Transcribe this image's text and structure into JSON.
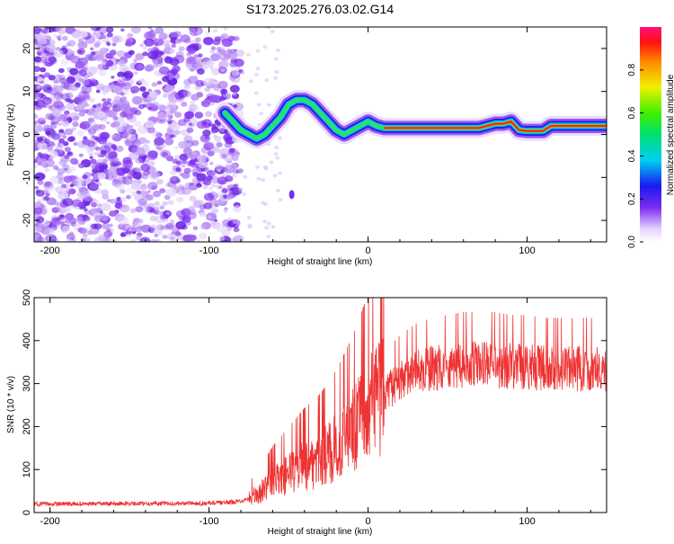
{
  "title": "S173.2025.276.03.02.G14",
  "chart_data": [
    {
      "type": "heatmap",
      "name": "spectrogram",
      "xlabel": "Height of straight line (km)",
      "ylabel": "Frequency (Hz)",
      "xlim": [
        -210,
        150
      ],
      "ylim": [
        -25,
        25
      ],
      "xticks": [
        -200,
        -100,
        0,
        100
      ],
      "yticks": [
        -20,
        -10,
        0,
        10,
        20
      ],
      "colorbar": {
        "label": "Normalized spectral amplitude",
        "range": [
          0,
          1
        ],
        "ticks": [
          0.0,
          0.2,
          0.4,
          0.6,
          0.8
        ]
      },
      "track": {
        "x": [
          -90,
          -85,
          -80,
          -75,
          -70,
          -65,
          -60,
          -55,
          -50,
          -45,
          -40,
          -35,
          -30,
          -25,
          -20,
          -15,
          -10,
          -5,
          0,
          5,
          10,
          20,
          40,
          60,
          70,
          75,
          80,
          85,
          90,
          95,
          100,
          110,
          115,
          130,
          150
        ],
        "freq": [
          5,
          3,
          1,
          0,
          -1,
          0,
          2,
          4,
          7,
          8,
          8,
          7,
          5,
          3,
          1,
          0,
          1,
          2,
          3,
          2,
          1.5,
          1.5,
          1.5,
          1.5,
          1.5,
          2,
          2.5,
          2.5,
          3,
          1,
          0.8,
          0.8,
          2,
          2,
          2
        ]
      }
    },
    {
      "type": "line",
      "name": "snr",
      "xlabel": "Height of straight line (km)",
      "ylabel": "SNR (10 * v/v)",
      "xlim": [
        -210,
        150
      ],
      "ylim": [
        0,
        500
      ],
      "xticks": [
        -200,
        -100,
        0,
        100
      ],
      "yticks": [
        0,
        100,
        200,
        300,
        400,
        500
      ],
      "color": "#ee3333",
      "trend": {
        "x": [
          -210,
          -180,
          -150,
          -120,
          -100,
          -90,
          -80,
          -70,
          -60,
          -50,
          -40,
          -30,
          -20,
          -10,
          0,
          10,
          20,
          30,
          40,
          50,
          60,
          70,
          80,
          90,
          100,
          110,
          120,
          130,
          140,
          150
        ],
        "y": [
          20,
          20,
          21,
          21,
          22,
          23,
          27,
          40,
          70,
          90,
          110,
          125,
          150,
          185,
          230,
          275,
          305,
          325,
          335,
          340,
          345,
          345,
          345,
          340,
          340,
          335,
          335,
          335,
          335,
          330
        ]
      }
    }
  ]
}
